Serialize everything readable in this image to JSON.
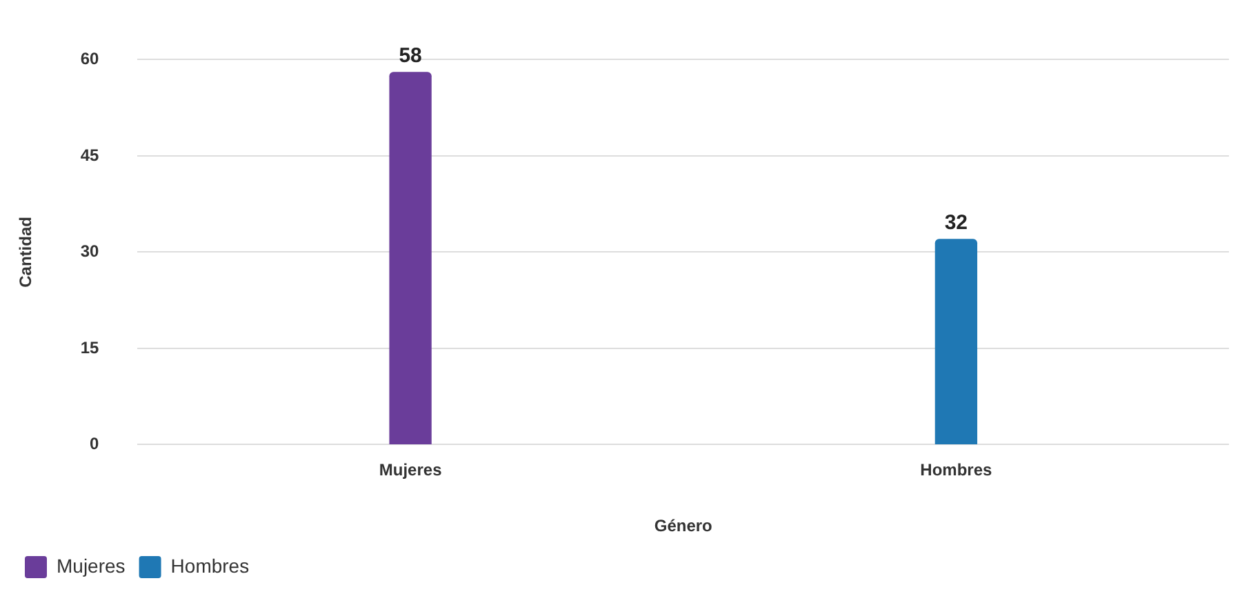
{
  "chart_data": {
    "type": "bar",
    "xlabel": "Género",
    "ylabel": "Cantidad",
    "categories": [
      "Mujeres",
      "Hombres"
    ],
    "series": [
      {
        "name": "Mujeres",
        "color": "#6a3d9a",
        "values": [
          58,
          null
        ]
      },
      {
        "name": "Hombres",
        "color": "#1f78b4",
        "values": [
          null,
          32
        ]
      }
    ],
    "ylim": [
      0,
      60
    ],
    "yticks": [
      0,
      15,
      30,
      45,
      60
    ],
    "grid": "y",
    "legend": "bottom left",
    "data_labels": true
  }
}
